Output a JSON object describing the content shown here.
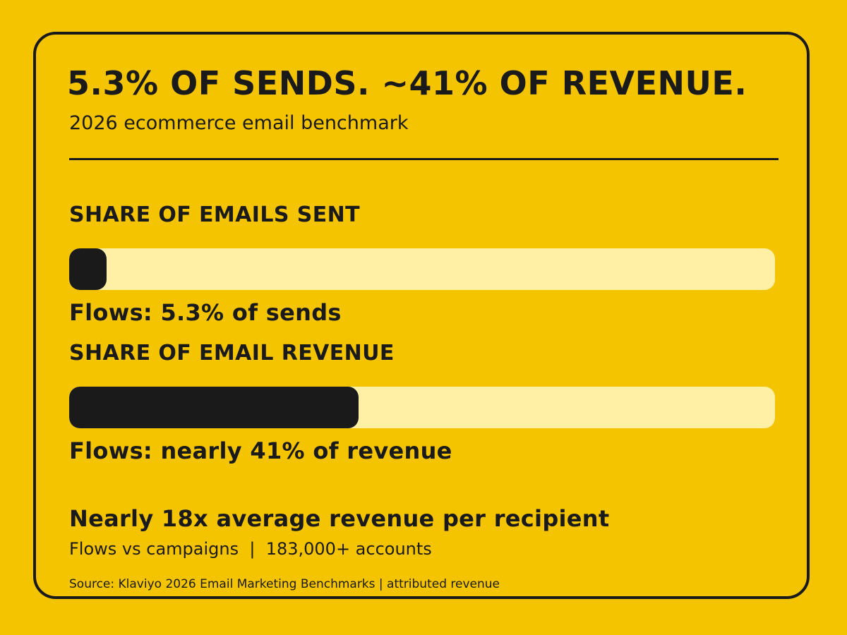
{
  "headline": "5.3% OF SENDS. ~41% OF REVENUE.",
  "subtitle": "2026 ecommerce email benchmark",
  "colors": {
    "background": "#F5C400",
    "ink": "#1A1A1A",
    "track": "#FFF0A6"
  },
  "chart_data": [
    {
      "type": "bar",
      "title": "SHARE OF EMAILS SENT",
      "category": "Flows",
      "value": 5.3,
      "unit": "%",
      "xlim": [
        0,
        100
      ],
      "label": "Flows: 5.3% of sends"
    },
    {
      "type": "bar",
      "title": "SHARE OF EMAIL REVENUE",
      "category": "Flows",
      "value": 41,
      "unit": "%",
      "xlim": [
        0,
        100
      ],
      "label": "Flows: nearly 41% of revenue"
    }
  ],
  "stat": {
    "title": "Nearly 18x average revenue per recipient",
    "detail": "Flows vs campaigns  |  183,000+ accounts"
  },
  "source": "Source: Klaviyo 2026 Email Marketing Benchmarks | attributed revenue"
}
